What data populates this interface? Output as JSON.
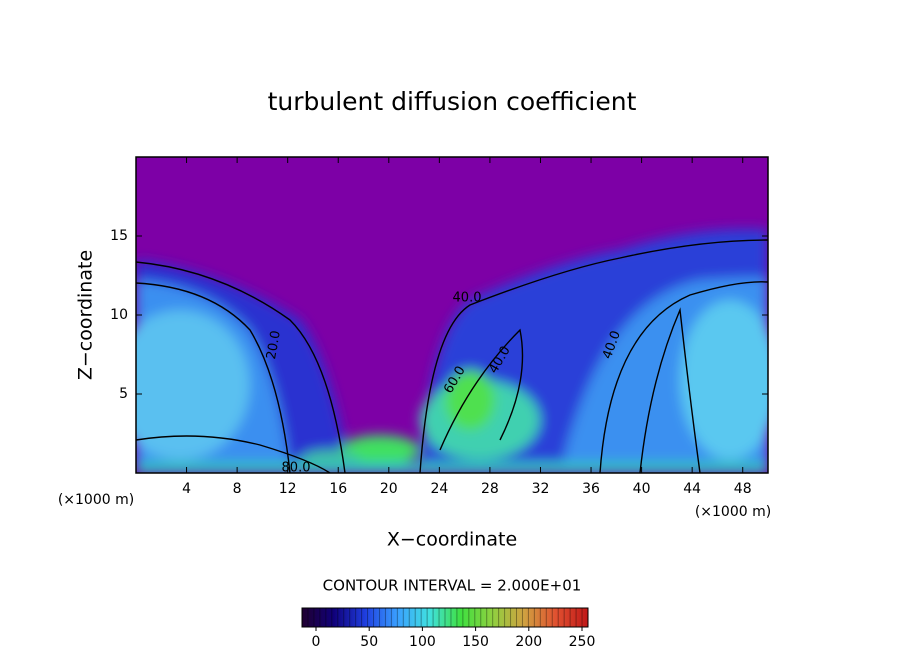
{
  "chart_data": {
    "type": "contour",
    "title": "turbulent diffusion coefficient",
    "xlabel": "X−coordinate",
    "ylabel": "Z−coordinate",
    "x_unit_label": "(×1000 m)",
    "y_unit_label": "(×1000 m)",
    "xlim": [
      0,
      50
    ],
    "xticks": [
      4,
      8,
      12,
      16,
      20,
      24,
      28,
      32,
      36,
      40,
      44,
      48
    ],
    "ylim": [
      0,
      20
    ],
    "yticks": [
      5,
      10,
      15
    ],
    "contour_labels": [
      "40.0",
      "80.0",
      "40.0",
      "20.0",
      "60.0",
      "40.0"
    ],
    "contour_interval_label": "CONTOUR INTERVAL = 2.000E+01",
    "colorbar_lim": [
      0,
      250
    ],
    "colorbar_ticks": [
      0,
      50,
      100,
      150,
      200,
      250
    ],
    "colormap": [
      "#200030",
      "#10007a",
      "#1f3fe0",
      "#3aa0ff",
      "#40e0e0",
      "#40e040",
      "#90d040",
      "#d0a040",
      "#e05030",
      "#c01818"
    ]
  }
}
